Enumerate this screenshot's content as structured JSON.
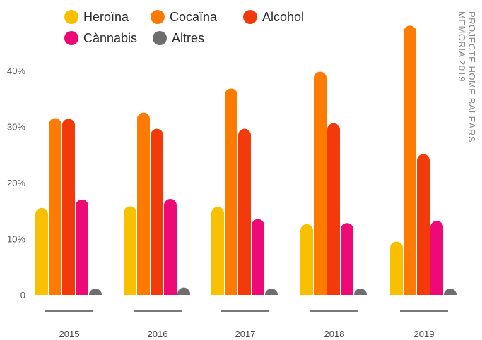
{
  "side_note": {
    "line1": "PROJECTE HOME BALEARS",
    "line2": "MEMÒRIA 2019"
  },
  "chart_data": {
    "type": "bar",
    "title": "",
    "xlabel": "",
    "ylabel": "",
    "ylim": [
      0,
      50
    ],
    "yticks": [
      {
        "value": 0,
        "label": "0"
      },
      {
        "value": 10,
        "label": "10%"
      },
      {
        "value": 20,
        "label": "20%"
      },
      {
        "value": 30,
        "label": "30%"
      },
      {
        "value": 40,
        "label": "40%"
      }
    ],
    "grid": false,
    "legend_position": "top-left",
    "categories": [
      "2015",
      "2016",
      "2017",
      "2018",
      "2019"
    ],
    "series": [
      {
        "name": "Heroïna",
        "color": "#F9C000",
        "values": [
          15.5,
          15.8,
          15.7,
          12.6,
          9.5
        ]
      },
      {
        "name": "Cocaïna",
        "color": "#FF7A00",
        "values": [
          31.5,
          32.5,
          36.8,
          39.8,
          48.0
        ]
      },
      {
        "name": "Alcohol",
        "color": "#F23A0B",
        "values": [
          31.4,
          29.6,
          29.6,
          30.6,
          25.1
        ]
      },
      {
        "name": "Cànnabis",
        "color": "#EE0A76",
        "values": [
          17.0,
          17.1,
          13.5,
          12.8,
          13.2
        ]
      },
      {
        "name": "Altres",
        "color": "#6E6E6E",
        "values": [
          1.0,
          1.3,
          0.6,
          0.6,
          0.6
        ]
      }
    ]
  }
}
